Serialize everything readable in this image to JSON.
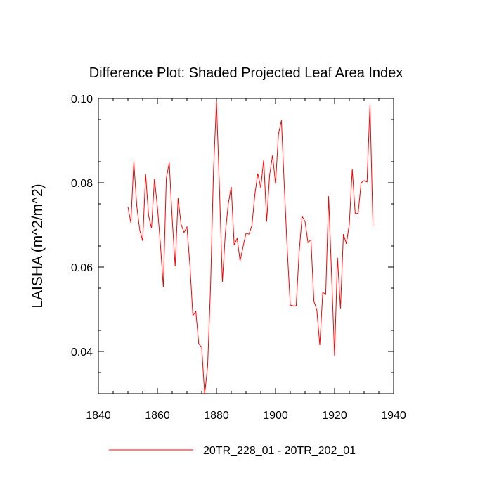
{
  "chart_data": {
    "type": "line",
    "title": "Difference Plot: Shaded Projected Leaf Area Index",
    "xlabel": "",
    "ylabel": "LAISHA  (m^2/m^2)",
    "xlim": [
      1840,
      1940
    ],
    "ylim": [
      0.03,
      0.1
    ],
    "x_ticks": [
      1840,
      1860,
      1880,
      1900,
      1920,
      1940
    ],
    "x_tick_labels": [
      "1840",
      "1860",
      "1880",
      "1900",
      "1920",
      "1940"
    ],
    "y_ticks": [
      0.04,
      0.06,
      0.08,
      0.1
    ],
    "y_tick_labels": [
      "0.04",
      "0.06",
      "0.08",
      "0.10"
    ],
    "grid": false,
    "legend_position": "bottom",
    "series": [
      {
        "name": "20TR_228_01 - 20TR_202_01",
        "color": "#ff0000",
        "x": [
          1850,
          1851,
          1852,
          1853,
          1854,
          1855,
          1856,
          1857,
          1858,
          1859,
          1860,
          1861,
          1862,
          1863,
          1864,
          1865,
          1866,
          1867,
          1868,
          1869,
          1870,
          1871,
          1872,
          1873,
          1874,
          1875,
          1876,
          1877,
          1878,
          1879,
          1880,
          1881,
          1882,
          1883,
          1884,
          1885,
          1886,
          1887,
          1888,
          1889,
          1890,
          1891,
          1892,
          1893,
          1894,
          1895,
          1896,
          1897,
          1898,
          1899,
          1900,
          1901,
          1902,
          1903,
          1904,
          1905,
          1906,
          1907,
          1908,
          1909,
          1910,
          1911,
          1912,
          1913,
          1914,
          1915,
          1916,
          1917,
          1918,
          1919,
          1920,
          1921,
          1922,
          1923,
          1924,
          1925,
          1926,
          1927,
          1928,
          1929,
          1930,
          1931,
          1932,
          1933
        ],
        "values": [
          0.0743,
          0.0705,
          0.085,
          0.0745,
          0.0688,
          0.0662,
          0.082,
          0.0722,
          0.0692,
          0.081,
          0.0742,
          0.0655,
          0.0552,
          0.081,
          0.0848,
          0.0715,
          0.0602,
          0.0763,
          0.0702,
          0.0682,
          0.0695,
          0.0605,
          0.0485,
          0.0495,
          0.0418,
          0.041,
          0.0298,
          0.0365,
          0.0555,
          0.083,
          0.0992,
          0.079,
          0.0565,
          0.068,
          0.075,
          0.079,
          0.0652,
          0.0668,
          0.0615,
          0.0648,
          0.068,
          0.0678,
          0.0698,
          0.0772,
          0.0822,
          0.0788,
          0.0855,
          0.0708,
          0.0818,
          0.0865,
          0.0798,
          0.0915,
          0.0948,
          0.0788,
          0.0638,
          0.051,
          0.0508,
          0.0508,
          0.0635,
          0.072,
          0.0708,
          0.0658,
          0.0665,
          0.052,
          0.0498,
          0.0415,
          0.054,
          0.0535,
          0.0768,
          0.058,
          0.039,
          0.0622,
          0.0502,
          0.0678,
          0.0655,
          0.0702,
          0.0832,
          0.0726,
          0.0728,
          0.08,
          0.0805,
          0.0802,
          0.0985,
          0.0698
        ]
      }
    ]
  }
}
